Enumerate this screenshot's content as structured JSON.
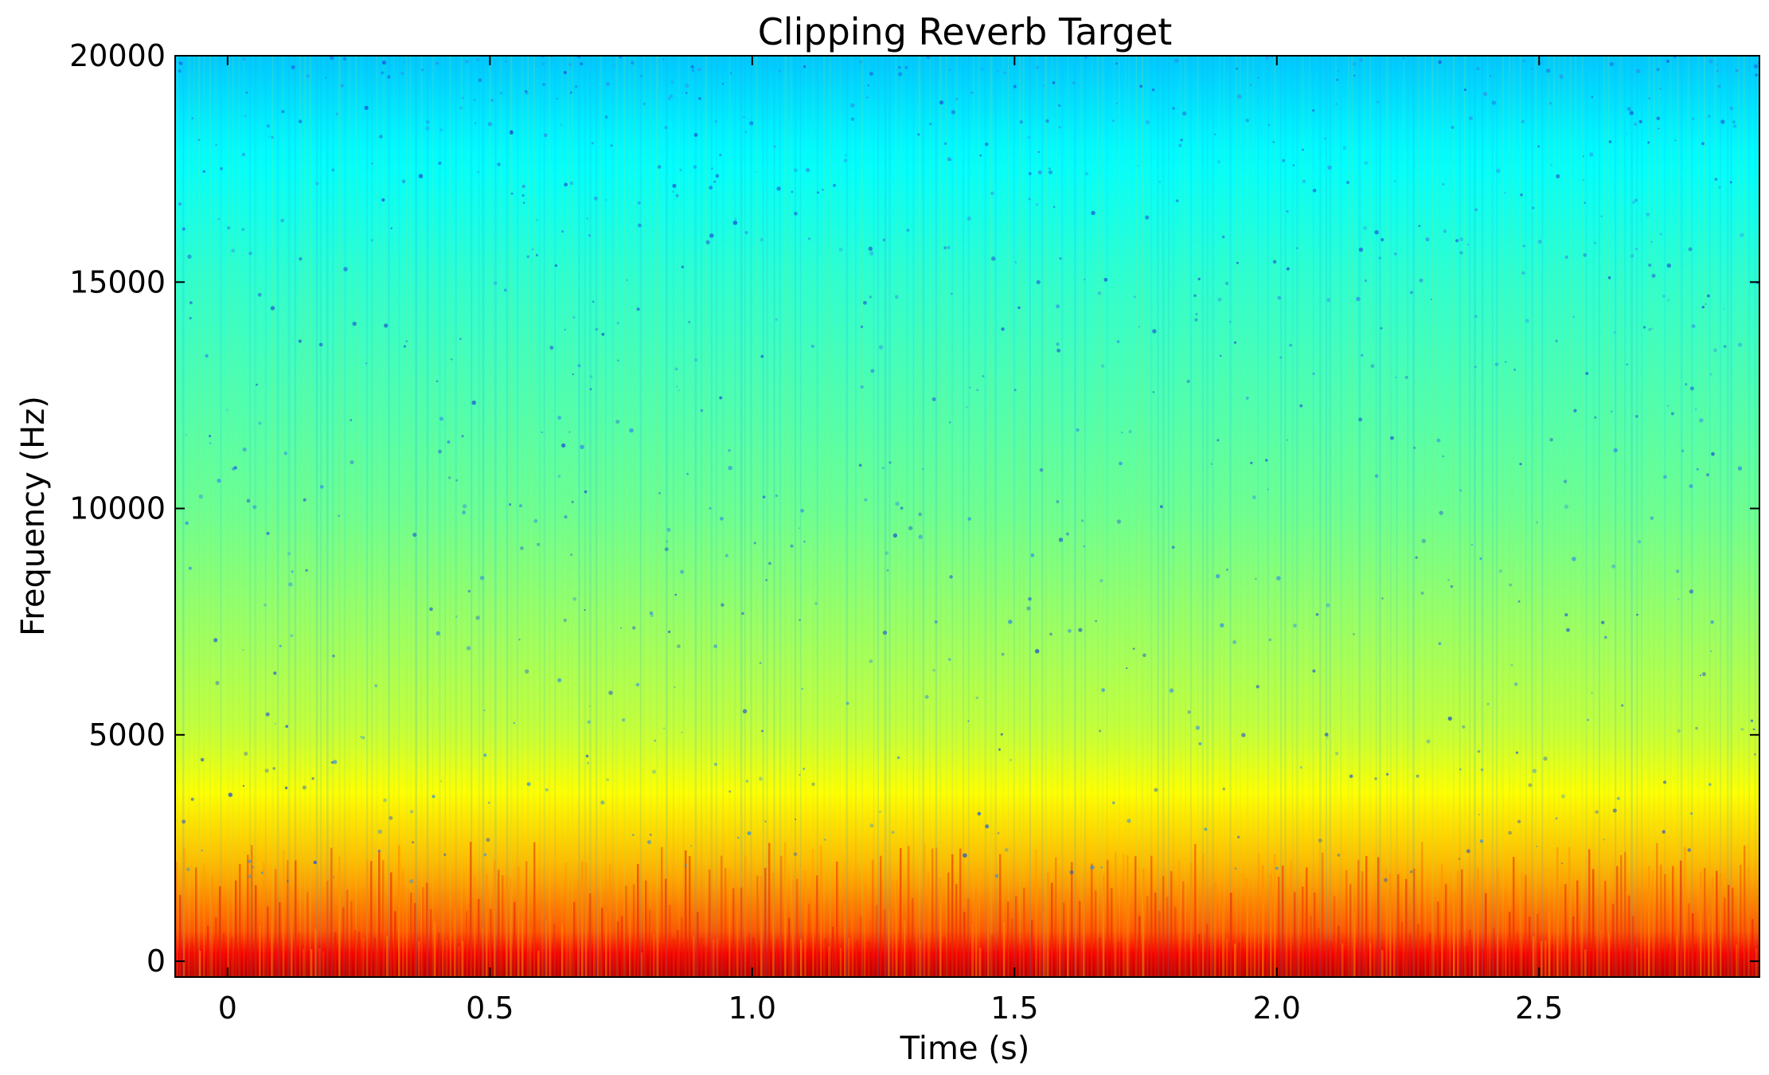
{
  "chart_data": {
    "type": "heatmap",
    "title": "Clipping Reverb Target",
    "xlabel": "Time (s)",
    "ylabel": "Frequency (Hz)",
    "xlim": [
      -0.1,
      2.92
    ],
    "ylim": [
      -350,
      20000
    ],
    "x_ticks": [
      0,
      0.5,
      1.0,
      1.5,
      2.0,
      2.5
    ],
    "x_tick_labels": [
      "0",
      "0.5",
      "1.0",
      "1.5",
      "2.0",
      "2.5"
    ],
    "y_ticks": [
      0,
      5000,
      10000,
      15000,
      20000
    ],
    "y_tick_labels": [
      "0",
      "5000",
      "10000",
      "15000",
      "20000"
    ],
    "colormap": "jet",
    "intensity_profile": {
      "frequency_hz": [
        0,
        500,
        2000,
        5000,
        10000,
        15000,
        18000,
        20000
      ],
      "level": [
        0.92,
        0.8,
        0.7,
        0.57,
        0.48,
        0.42,
        0.37,
        0.32
      ]
    },
    "grid": false,
    "legend": "none",
    "colors": {
      "frame": "#000000",
      "background": "#ffffff"
    }
  }
}
